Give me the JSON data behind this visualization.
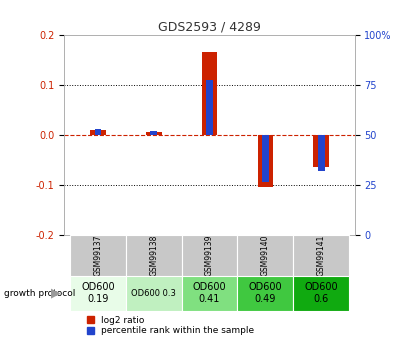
{
  "title": "GDS2593 / 4289",
  "samples": [
    "GSM99137",
    "GSM99138",
    "GSM99139",
    "GSM99140",
    "GSM99141"
  ],
  "log2_ratio": [
    0.01,
    0.005,
    0.165,
    -0.105,
    -0.065
  ],
  "percentile_rank_mapped": [
    0.012,
    0.008,
    0.11,
    -0.094,
    -0.072
  ],
  "ylim_left": [
    -0.2,
    0.2
  ],
  "ylim_right": [
    0,
    100
  ],
  "yticks_left": [
    -0.2,
    -0.1,
    0.0,
    0.1,
    0.2
  ],
  "yticks_right": [
    0,
    25,
    50,
    75,
    100
  ],
  "bar_color_red": "#cc2200",
  "bar_color_blue": "#2244cc",
  "dashed_line_color": "#cc2200",
  "background_color": "#ffffff",
  "annotation_row": {
    "label": "growth protocol",
    "values": [
      "OD600\n0.19",
      "OD600 0.3",
      "OD600\n0.41",
      "OD600\n0.49",
      "OD600\n0.6"
    ],
    "colors": [
      "#e8fce8",
      "#c0f0c0",
      "#80e080",
      "#40c840",
      "#10aa10"
    ],
    "font_sizes": [
      7,
      6,
      7,
      7,
      7
    ]
  },
  "sample_row_color": "#c8c8c8",
  "legend_red": "log2 ratio",
  "legend_blue": "percentile rank within the sample",
  "red_bar_width": 0.28,
  "blue_bar_width": 0.12
}
